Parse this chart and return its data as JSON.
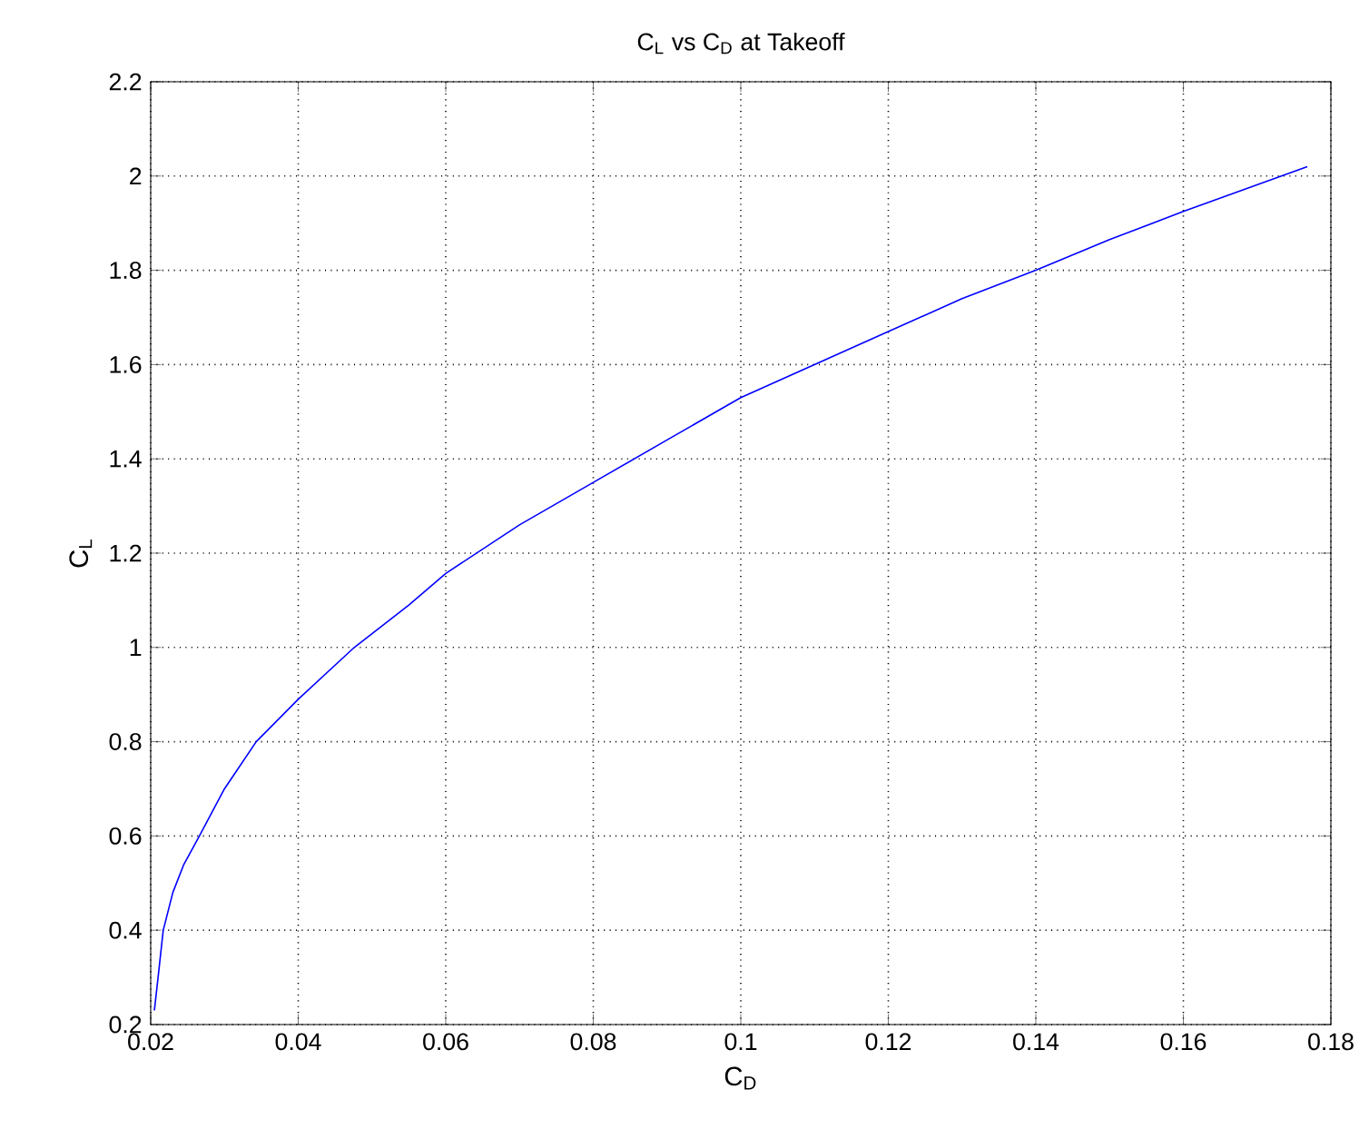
{
  "chart_data": {
    "type": "line",
    "title": "C$_{L}$ vs C$_{D}$ at Takeoff",
    "xlabel": "C$_{D}$",
    "ylabel": "C$_{L}$",
    "x": [
      0.0205,
      0.021,
      0.0217,
      0.023,
      0.0245,
      0.0266,
      0.03,
      0.0343,
      0.04,
      0.0476,
      0.055,
      0.06,
      0.07,
      0.08,
      0.09,
      0.1,
      0.11,
      0.12,
      0.13,
      0.14,
      0.15,
      0.16,
      0.1768
    ],
    "series": [
      {
        "color": "#0000ff",
        "values": [
          0.23,
          0.3,
          0.4,
          0.48,
          0.54,
          0.6,
          0.7,
          0.8,
          0.89,
          1.0,
          1.09,
          1.157,
          1.26,
          1.35,
          1.44,
          1.53,
          1.6,
          1.67,
          1.74,
          1.8,
          1.865,
          1.925,
          2.02
        ]
      }
    ],
    "xlim": [
      0.02,
      0.18
    ],
    "ylim": [
      0.2,
      2.2
    ],
    "xticks": [
      0.02,
      0.04,
      0.06,
      0.08,
      0.1,
      0.12,
      0.14,
      0.16,
      0.18
    ],
    "yticks": [
      0.2,
      0.4,
      0.6,
      0.8,
      1,
      1.2,
      1.4,
      1.6,
      1.8,
      2,
      2.2
    ],
    "grid": true,
    "line_style": "solid",
    "marker": "none"
  }
}
